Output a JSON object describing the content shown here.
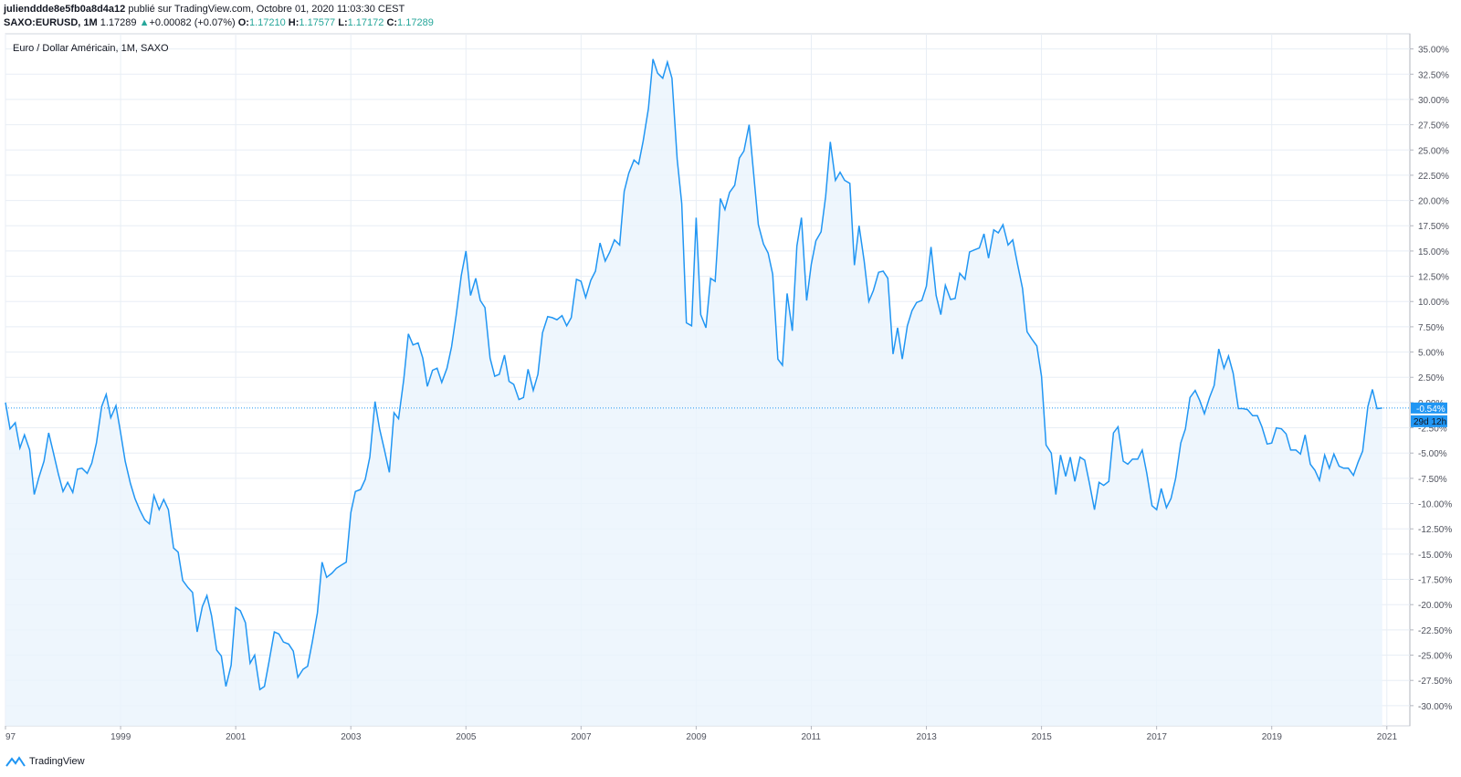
{
  "header": {
    "user": "julienddde8e5fb0a8d4a12",
    "published": " publié sur TradingView.com, Octobre 01, 2020 11:03:30 CEST",
    "symbol": "SAXO:EURUSD, 1M",
    "last": "1.17289",
    "arrow": "▲",
    "change": "+0.00082 (+0.07%)",
    "o_label": "O:",
    "o": "1.17210",
    "h_label": "H:",
    "h": "1.17577",
    "l_label": "L:",
    "l": "1.17172",
    "c_label": "C:",
    "c": "1.17289"
  },
  "brand": "TradingView",
  "colors": {
    "line": "#2196f3",
    "fill": "#eaf4fd",
    "grid": "#e8eef5",
    "axis": "#50535e",
    "up": "#26a69a",
    "badge": "#2196f3"
  },
  "chart_data": {
    "type": "area",
    "title": "Euro / Dollar Américain, 1M, SAXO",
    "x_range": [
      1997,
      2021.4
    ],
    "ylim": [
      -32,
      36.5
    ],
    "y_unit": "%",
    "x_ticks": [
      "97",
      "1999",
      "2001",
      "2003",
      "2005",
      "2007",
      "2009",
      "2011",
      "2013",
      "2015",
      "2017",
      "2019",
      "2021"
    ],
    "y_ticks": [
      "35.00%",
      "32.50%",
      "30.00%",
      "27.50%",
      "25.00%",
      "22.50%",
      "20.00%",
      "17.50%",
      "15.00%",
      "12.50%",
      "10.00%",
      "7.50%",
      "5.00%",
      "2.50%",
      "0.00%",
      "-2.50%",
      "-5.00%",
      "-7.50%",
      "-10.00%",
      "-12.50%",
      "-15.00%",
      "-17.50%",
      "-20.00%",
      "-22.50%",
      "-25.00%",
      "-27.50%",
      "-30.00%"
    ],
    "last_value_label": "-0.54%",
    "countdown_label": "29d 12h",
    "last_value": -0.54,
    "series": [
      {
        "points": [
          [
            1997.0,
            0.0
          ],
          [
            1997.08,
            -2.6
          ],
          [
            1997.17,
            -2.0
          ],
          [
            1997.25,
            -4.5
          ],
          [
            1997.33,
            -3.2
          ],
          [
            1997.42,
            -4.7
          ],
          [
            1997.5,
            -9.1
          ],
          [
            1997.58,
            -7.4
          ],
          [
            1997.67,
            -5.8
          ],
          [
            1997.75,
            -3.0
          ],
          [
            1997.83,
            -4.9
          ],
          [
            1997.92,
            -7.1
          ],
          [
            1998.0,
            -8.8
          ],
          [
            1998.08,
            -7.9
          ],
          [
            1998.17,
            -8.9
          ],
          [
            1998.25,
            -6.6
          ],
          [
            1998.33,
            -6.5
          ],
          [
            1998.42,
            -7.0
          ],
          [
            1998.5,
            -6.0
          ],
          [
            1998.58,
            -4.0
          ],
          [
            1998.67,
            -0.4
          ],
          [
            1998.75,
            0.8
          ],
          [
            1998.83,
            -1.5
          ],
          [
            1998.92,
            -0.3
          ],
          [
            1999.0,
            -3.0
          ],
          [
            1999.08,
            -5.8
          ],
          [
            1999.17,
            -8.0
          ],
          [
            1999.25,
            -9.5
          ],
          [
            1999.33,
            -10.6
          ],
          [
            1999.42,
            -11.6
          ],
          [
            1999.5,
            -12.0
          ],
          [
            1999.58,
            -9.2
          ],
          [
            1999.67,
            -10.6
          ],
          [
            1999.75,
            -9.6
          ],
          [
            1999.83,
            -10.6
          ],
          [
            1999.92,
            -14.4
          ],
          [
            2000.0,
            -14.8
          ],
          [
            2000.08,
            -17.6
          ],
          [
            2000.17,
            -18.3
          ],
          [
            2000.25,
            -18.8
          ],
          [
            2000.33,
            -22.7
          ],
          [
            2000.42,
            -20.2
          ],
          [
            2000.5,
            -19.1
          ],
          [
            2000.58,
            -21.1
          ],
          [
            2000.67,
            -24.5
          ],
          [
            2000.75,
            -25.1
          ],
          [
            2000.83,
            -28.1
          ],
          [
            2000.92,
            -26.0
          ],
          [
            2001.0,
            -20.3
          ],
          [
            2001.08,
            -20.6
          ],
          [
            2001.17,
            -21.8
          ],
          [
            2001.25,
            -25.8
          ],
          [
            2001.33,
            -25.0
          ],
          [
            2001.42,
            -28.4
          ],
          [
            2001.5,
            -28.1
          ],
          [
            2001.58,
            -25.6
          ],
          [
            2001.67,
            -22.7
          ],
          [
            2001.75,
            -22.9
          ],
          [
            2001.83,
            -23.7
          ],
          [
            2001.92,
            -23.9
          ],
          [
            2002.0,
            -24.6
          ],
          [
            2002.08,
            -27.2
          ],
          [
            2002.17,
            -26.4
          ],
          [
            2002.25,
            -26.1
          ],
          [
            2002.33,
            -23.7
          ],
          [
            2002.42,
            -20.8
          ],
          [
            2002.5,
            -15.8
          ],
          [
            2002.58,
            -17.3
          ],
          [
            2002.67,
            -16.9
          ],
          [
            2002.75,
            -16.4
          ],
          [
            2002.83,
            -16.1
          ],
          [
            2002.92,
            -15.8
          ],
          [
            2003.0,
            -10.9
          ],
          [
            2003.08,
            -8.8
          ],
          [
            2003.17,
            -8.6
          ],
          [
            2003.25,
            -7.6
          ],
          [
            2003.33,
            -5.4
          ],
          [
            2003.42,
            0.1
          ],
          [
            2003.5,
            -2.6
          ],
          [
            2003.58,
            -4.6
          ],
          [
            2003.67,
            -6.9
          ],
          [
            2003.75,
            -1.0
          ],
          [
            2003.83,
            -1.6
          ],
          [
            2003.92,
            2.3
          ],
          [
            2004.0,
            6.8
          ],
          [
            2004.08,
            5.7
          ],
          [
            2004.17,
            5.9
          ],
          [
            2004.25,
            4.4
          ],
          [
            2004.33,
            1.6
          ],
          [
            2004.42,
            3.2
          ],
          [
            2004.5,
            3.4
          ],
          [
            2004.58,
            2.0
          ],
          [
            2004.67,
            3.4
          ],
          [
            2004.75,
            5.5
          ],
          [
            2004.83,
            8.6
          ],
          [
            2004.92,
            12.6
          ],
          [
            2005.0,
            15.0
          ],
          [
            2005.08,
            10.6
          ],
          [
            2005.17,
            12.3
          ],
          [
            2005.25,
            10.1
          ],
          [
            2005.33,
            9.4
          ],
          [
            2005.42,
            4.4
          ],
          [
            2005.5,
            2.6
          ],
          [
            2005.58,
            2.8
          ],
          [
            2005.67,
            4.7
          ],
          [
            2005.75,
            2.1
          ],
          [
            2005.83,
            1.8
          ],
          [
            2005.92,
            0.3
          ],
          [
            2006.0,
            0.5
          ],
          [
            2006.08,
            3.3
          ],
          [
            2006.17,
            1.2
          ],
          [
            2006.25,
            2.8
          ],
          [
            2006.33,
            6.9
          ],
          [
            2006.42,
            8.5
          ],
          [
            2006.5,
            8.4
          ],
          [
            2006.58,
            8.2
          ],
          [
            2006.67,
            8.6
          ],
          [
            2006.75,
            7.6
          ],
          [
            2006.83,
            8.4
          ],
          [
            2006.92,
            12.2
          ],
          [
            2007.0,
            12.0
          ],
          [
            2007.08,
            10.4
          ],
          [
            2007.17,
            12.1
          ],
          [
            2007.25,
            13.0
          ],
          [
            2007.33,
            15.8
          ],
          [
            2007.42,
            14.0
          ],
          [
            2007.5,
            14.9
          ],
          [
            2007.58,
            16.1
          ],
          [
            2007.67,
            15.6
          ],
          [
            2007.75,
            20.9
          ],
          [
            2007.83,
            22.7
          ],
          [
            2007.92,
            24.0
          ],
          [
            2008.0,
            23.6
          ],
          [
            2008.08,
            25.9
          ],
          [
            2008.17,
            29.1
          ],
          [
            2008.25,
            34.0
          ],
          [
            2008.33,
            32.6
          ],
          [
            2008.42,
            32.1
          ],
          [
            2008.5,
            33.7
          ],
          [
            2008.58,
            32.1
          ],
          [
            2008.67,
            24.1
          ],
          [
            2008.75,
            19.7
          ],
          [
            2008.83,
            7.9
          ],
          [
            2008.92,
            7.6
          ],
          [
            2009.0,
            18.3
          ],
          [
            2009.08,
            8.7
          ],
          [
            2009.17,
            7.4
          ],
          [
            2009.25,
            12.3
          ],
          [
            2009.33,
            12.0
          ],
          [
            2009.42,
            20.2
          ],
          [
            2009.5,
            19.1
          ],
          [
            2009.58,
            20.8
          ],
          [
            2009.67,
            21.5
          ],
          [
            2009.75,
            24.2
          ],
          [
            2009.83,
            24.9
          ],
          [
            2009.92,
            27.5
          ],
          [
            2010.0,
            22.6
          ],
          [
            2010.08,
            17.6
          ],
          [
            2010.17,
            15.7
          ],
          [
            2010.25,
            14.8
          ],
          [
            2010.33,
            12.7
          ],
          [
            2010.42,
            4.3
          ],
          [
            2010.5,
            3.7
          ],
          [
            2010.58,
            10.8
          ],
          [
            2010.67,
            7.1
          ],
          [
            2010.75,
            15.5
          ],
          [
            2010.83,
            18.3
          ],
          [
            2010.92,
            10.1
          ],
          [
            2011.0,
            13.7
          ],
          [
            2011.08,
            16.0
          ],
          [
            2011.17,
            16.9
          ],
          [
            2011.25,
            20.4
          ],
          [
            2011.33,
            25.8
          ],
          [
            2011.42,
            22.0
          ],
          [
            2011.5,
            22.8
          ],
          [
            2011.58,
            22.0
          ],
          [
            2011.67,
            21.7
          ],
          [
            2011.75,
            13.6
          ],
          [
            2011.83,
            17.5
          ],
          [
            2011.92,
            14.0
          ],
          [
            2012.0,
            10.0
          ],
          [
            2012.08,
            11.1
          ],
          [
            2012.17,
            12.9
          ],
          [
            2012.25,
            13.0
          ],
          [
            2012.33,
            12.3
          ],
          [
            2012.42,
            4.8
          ],
          [
            2012.5,
            7.4
          ],
          [
            2012.58,
            4.3
          ],
          [
            2012.67,
            7.6
          ],
          [
            2012.75,
            9.1
          ],
          [
            2012.83,
            9.9
          ],
          [
            2012.92,
            10.1
          ],
          [
            2013.0,
            11.5
          ],
          [
            2013.08,
            15.4
          ],
          [
            2013.17,
            10.6
          ],
          [
            2013.25,
            8.7
          ],
          [
            2013.33,
            11.6
          ],
          [
            2013.42,
            10.2
          ],
          [
            2013.5,
            10.3
          ],
          [
            2013.58,
            12.8
          ],
          [
            2013.67,
            12.2
          ],
          [
            2013.75,
            14.9
          ],
          [
            2013.83,
            15.1
          ],
          [
            2013.92,
            15.3
          ],
          [
            2014.0,
            16.7
          ],
          [
            2014.08,
            14.3
          ],
          [
            2014.17,
            17.1
          ],
          [
            2014.25,
            16.8
          ],
          [
            2014.33,
            17.6
          ],
          [
            2014.42,
            15.6
          ],
          [
            2014.5,
            16.1
          ],
          [
            2014.58,
            13.8
          ],
          [
            2014.67,
            11.3
          ],
          [
            2014.75,
            7.0
          ],
          [
            2014.83,
            6.3
          ],
          [
            2014.92,
            5.6
          ],
          [
            2015.0,
            2.6
          ],
          [
            2015.08,
            -4.2
          ],
          [
            2015.17,
            -5.0
          ],
          [
            2015.25,
            -9.1
          ],
          [
            2015.33,
            -5.2
          ],
          [
            2015.42,
            -7.3
          ],
          [
            2015.5,
            -5.4
          ],
          [
            2015.58,
            -7.8
          ],
          [
            2015.67,
            -5.4
          ],
          [
            2015.75,
            -5.7
          ],
          [
            2015.83,
            -7.9
          ],
          [
            2015.92,
            -10.6
          ],
          [
            2016.0,
            -7.9
          ],
          [
            2016.08,
            -8.2
          ],
          [
            2016.17,
            -7.8
          ],
          [
            2016.25,
            -3.0
          ],
          [
            2016.33,
            -2.4
          ],
          [
            2016.42,
            -5.8
          ],
          [
            2016.5,
            -6.1
          ],
          [
            2016.58,
            -5.6
          ],
          [
            2016.67,
            -5.6
          ],
          [
            2016.75,
            -4.7
          ],
          [
            2016.83,
            -7.0
          ],
          [
            2016.92,
            -10.2
          ],
          [
            2017.0,
            -10.6
          ],
          [
            2017.08,
            -8.5
          ],
          [
            2017.17,
            -10.4
          ],
          [
            2017.25,
            -9.5
          ],
          [
            2017.33,
            -7.5
          ],
          [
            2017.42,
            -4.0
          ],
          [
            2017.5,
            -2.6
          ],
          [
            2017.58,
            0.5
          ],
          [
            2017.67,
            1.2
          ],
          [
            2017.75,
            0.2
          ],
          [
            2017.83,
            -1.1
          ],
          [
            2017.92,
            0.5
          ],
          [
            2018.0,
            1.7
          ],
          [
            2018.08,
            5.3
          ],
          [
            2018.17,
            3.4
          ],
          [
            2018.25,
            4.6
          ],
          [
            2018.33,
            2.9
          ],
          [
            2018.42,
            -0.6
          ],
          [
            2018.5,
            -0.6
          ],
          [
            2018.58,
            -0.7
          ],
          [
            2018.67,
            -1.3
          ],
          [
            2018.75,
            -1.3
          ],
          [
            2018.83,
            -2.4
          ],
          [
            2018.92,
            -4.1
          ],
          [
            2019.0,
            -4.0
          ],
          [
            2019.08,
            -2.5
          ],
          [
            2019.17,
            -2.6
          ],
          [
            2019.25,
            -3.1
          ],
          [
            2019.33,
            -4.7
          ],
          [
            2019.42,
            -4.7
          ],
          [
            2019.5,
            -5.1
          ],
          [
            2019.58,
            -3.2
          ],
          [
            2019.67,
            -6.1
          ],
          [
            2019.75,
            -6.7
          ],
          [
            2019.83,
            -7.7
          ],
          [
            2019.92,
            -5.2
          ],
          [
            2020.0,
            -6.5
          ],
          [
            2020.08,
            -5.1
          ],
          [
            2020.17,
            -6.3
          ],
          [
            2020.25,
            -6.5
          ],
          [
            2020.33,
            -6.5
          ],
          [
            2020.42,
            -7.2
          ],
          [
            2020.5,
            -5.9
          ],
          [
            2020.58,
            -4.8
          ],
          [
            2020.67,
            -0.4
          ],
          [
            2020.75,
            1.3
          ],
          [
            2020.83,
            -0.6
          ],
          [
            2020.92,
            -0.54
          ]
        ]
      }
    ]
  }
}
